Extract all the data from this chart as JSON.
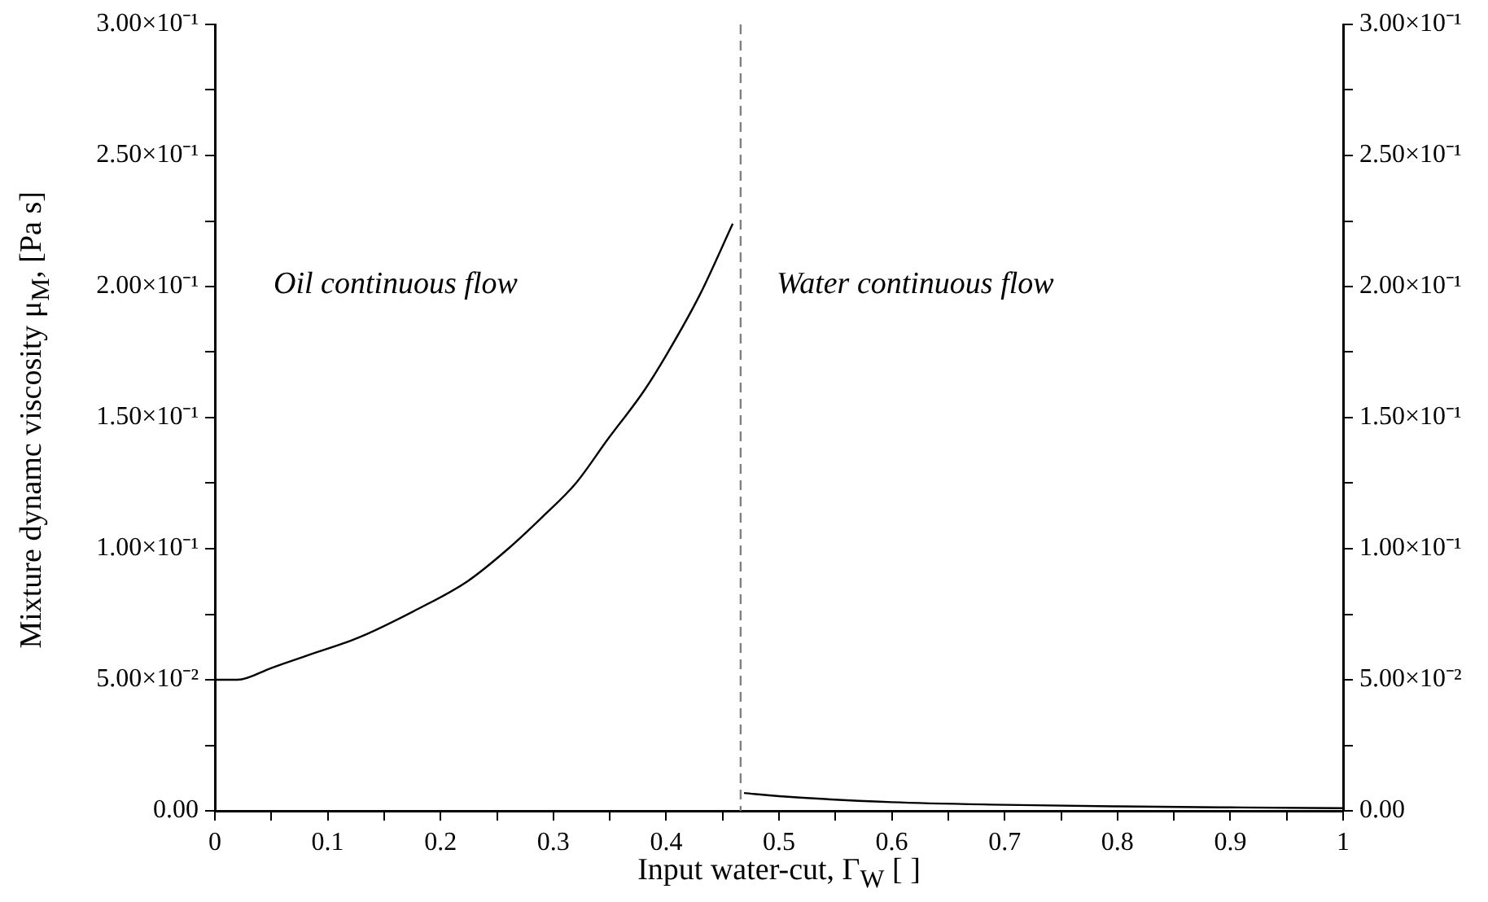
{
  "chart_data": {
    "type": "line",
    "xlabel": "Input water-cut, Γ$_{W}$ [ ]",
    "ylabel": "Mixture dynamc viscosity μ$_{M}$, [Pa s]",
    "annotations": [
      "Oil continuous flow",
      "Water continuous flow"
    ],
    "series": [
      {
        "color": "#000000",
        "x": [
          0,
          0.02,
          0.05,
          0.08,
          0.127,
          0.18,
          0.224,
          0.26,
          0.29,
          0.32,
          0.348,
          0.38,
          0.401,
          0.43,
          0.459
        ],
        "values": [
          0.05,
          0.05,
          0.0545,
          0.059,
          0.066,
          0.077,
          0.0876,
          0.1,
          0.112,
          0.125,
          0.1416,
          0.16,
          0.1745,
          0.197,
          0.224
        ]
      },
      {
        "color": "#000000",
        "x": [
          0.469,
          0.5,
          0.6,
          0.7,
          0.8,
          0.9,
          1.0
        ],
        "values": [
          0.0068,
          0.0056,
          0.0033,
          0.0023,
          0.0017,
          0.0013,
          0.001
        ]
      }
    ],
    "xlim": [
      0,
      1
    ],
    "xticks": [
      0,
      {
        "value": 0.05,
        "label": null
      },
      0.1,
      {
        "value": 0.15,
        "label": null
      },
      0.2,
      {
        "value": 0.25,
        "label": null
      },
      0.3,
      {
        "value": 0.35,
        "label": null
      },
      0.4,
      {
        "value": 0.45,
        "label": null
      },
      0.5,
      {
        "value": 0.55,
        "label": null
      },
      0.6,
      {
        "value": 0.65,
        "label": null
      },
      0.7,
      {
        "value": 0.75,
        "label": null
      },
      0.8,
      {
        "value": 0.85,
        "label": null
      },
      0.9,
      {
        "value": 0.95,
        "label": null
      },
      1
    ],
    "ylim": [
      0,
      0.3
    ],
    "yticks": [
      {
        "value": 0,
        "label": "0.00"
      },
      {
        "value": 0.025,
        "label": null
      },
      {
        "value": 0.05,
        "label": "5.00×10⁻²"
      },
      {
        "value": 0.075,
        "label": null
      },
      {
        "value": 0.1,
        "label": "1.00×10⁻¹"
      },
      {
        "value": 0.125,
        "label": null
      },
      {
        "value": 0.15,
        "label": "1.50×10⁻¹"
      },
      {
        "value": 0.175,
        "label": null
      },
      {
        "value": 0.2,
        "label": "2.00×10⁻¹"
      },
      {
        "value": 0.225,
        "label": null
      },
      {
        "value": 0.25,
        "label": "2.50×10⁻¹"
      },
      {
        "value": 0.275,
        "label": null
      },
      {
        "value": 0.3,
        "label": "3.00×10⁻¹"
      }
    ],
    "y2lim": [
      0,
      0.3
    ],
    "y2ticks": [
      {
        "value": 0,
        "label": "0.00"
      },
      {
        "value": 0.025,
        "label": null
      },
      {
        "value": 0.05,
        "label": "5.00×10⁻²"
      },
      {
        "value": 0.075,
        "label": null
      },
      {
        "value": 0.1,
        "label": "1.00×10⁻¹"
      },
      {
        "value": 0.125,
        "label": null
      },
      {
        "value": 0.15,
        "label": "1.50×10⁻¹"
      },
      {
        "value": 0.175,
        "label": null
      },
      {
        "value": 0.2,
        "label": "2.00×10⁻¹"
      },
      {
        "value": 0.225,
        "label": null
      },
      {
        "value": 0.25,
        "label": "2.50×10⁻¹"
      },
      {
        "value": 0.275,
        "label": null
      },
      {
        "value": 0.3,
        "label": "3.00×10⁻¹"
      }
    ],
    "ref_lines": [
      {
        "axis": "x",
        "value": 0.466,
        "color": "#808080",
        "line_style": "dashed"
      }
    ],
    "grid": false,
    "legend": false,
    "marker": "none",
    "line_style": "solid"
  }
}
